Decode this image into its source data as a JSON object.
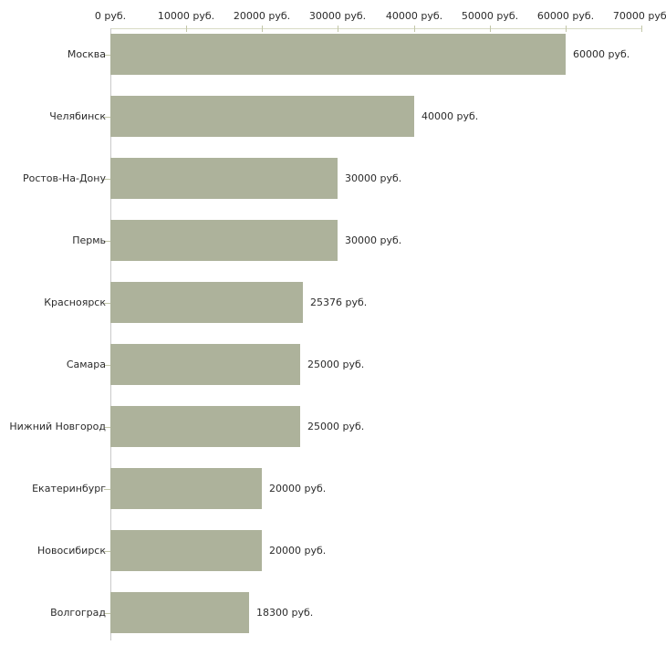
{
  "chart_data": {
    "type": "bar",
    "orientation": "horizontal",
    "title": "",
    "xlabel": "",
    "ylabel": "",
    "xlim": [
      0,
      70000
    ],
    "grid": false,
    "legend": null,
    "x_ticks": [
      {
        "value": 0,
        "label": "0 руб."
      },
      {
        "value": 10000,
        "label": "10000 руб."
      },
      {
        "value": 20000,
        "label": "20000 руб."
      },
      {
        "value": 30000,
        "label": "30000 руб."
      },
      {
        "value": 40000,
        "label": "40000 руб."
      },
      {
        "value": 50000,
        "label": "50000 руб."
      },
      {
        "value": 60000,
        "label": "60000 руб."
      },
      {
        "value": 70000,
        "label": "70000 руб."
      }
    ],
    "categories": [
      "Москва",
      "Челябинск",
      "Ростов-На-Дону",
      "Пермь",
      "Красноярск",
      "Самара",
      "Нижний Новгород",
      "Екатеринбург",
      "Новосибирск",
      "Волгоград"
    ],
    "values": [
      60000,
      40000,
      30000,
      30000,
      25376,
      25000,
      25000,
      20000,
      20000,
      18300
    ],
    "value_labels": [
      "60000 руб.",
      "40000 руб.",
      "30000 руб.",
      "30000 руб.",
      "25376 руб.",
      "25000 руб.",
      "25000 руб.",
      "20000 руб.",
      "20000 руб.",
      "18300 руб."
    ],
    "colors": {
      "bar": "#adb29b",
      "axis_line": "#d8dbc4",
      "tick_mark": "#c3c7a9",
      "y_axis_line": "#c9c9c9",
      "text": "#2b2b2b",
      "background": "#ffffff"
    }
  }
}
